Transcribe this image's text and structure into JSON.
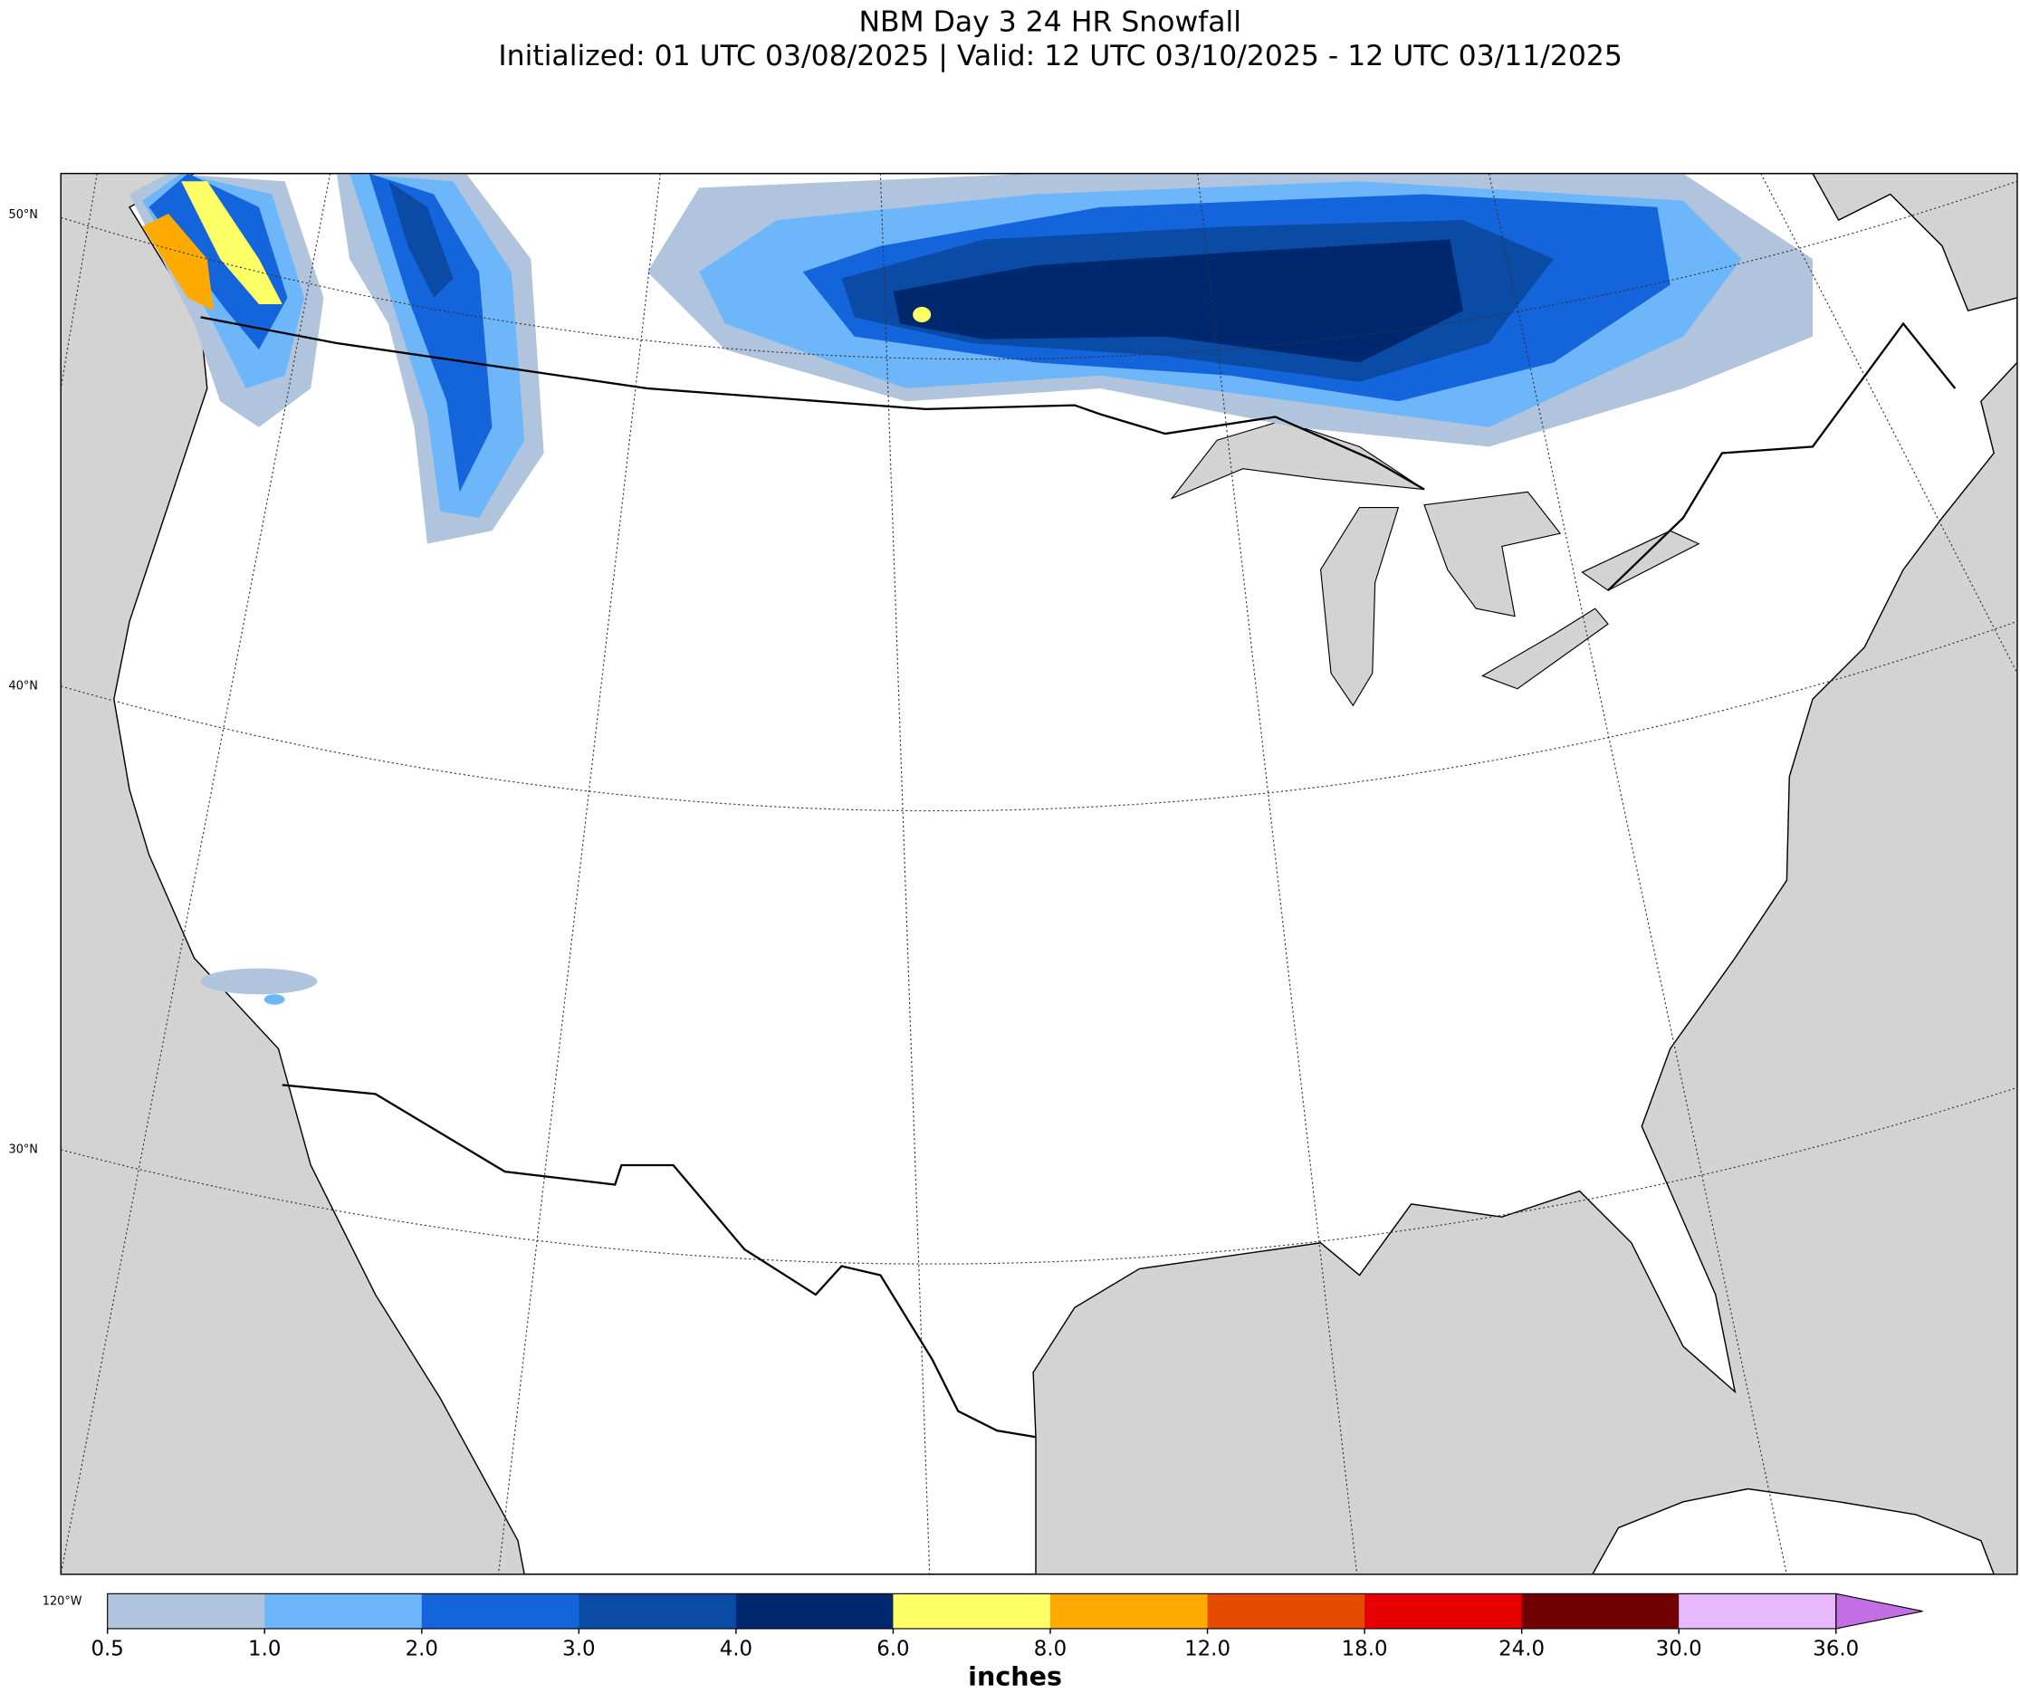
{
  "title": "NBM Day 3 24 HR Snowfall",
  "subtitle": "Initialized: 01 UTC 03/08/2025 | Valid: 12 UTC 03/10/2025 - 12 UTC 03/11/2025",
  "map": {
    "lat_labels": [
      "50°N",
      "40°N",
      "30°N"
    ],
    "lon_labels": [
      "120°W"
    ]
  },
  "colorbar": {
    "label": "inches",
    "ticks": [
      0.5,
      {
        "value": 1,
        "label": "1.0"
      },
      {
        "value": 2,
        "label": "2.0"
      },
      {
        "value": 3,
        "label": "3.0"
      },
      {
        "value": 4,
        "label": "4.0"
      },
      {
        "value": 6,
        "label": "6.0"
      },
      {
        "value": 8,
        "label": "8.0"
      },
      {
        "value": 12,
        "label": "12.0"
      },
      {
        "value": 18,
        "label": "18.0"
      },
      {
        "value": 24,
        "label": "24.0"
      },
      {
        "value": 30,
        "label": "30.0"
      },
      {
        "value": 36,
        "label": "36.0"
      }
    ],
    "colors": [
      "#b0c4de",
      "#6eb6fa",
      "#1464dc",
      "#0a4ba6",
      "#00286e",
      "#ffff66",
      "#ffaa00",
      "#e64c00",
      "#e60000",
      "#730000",
      "#e6b9ff"
    ],
    "extend_color": "#c46ee6"
  }
}
